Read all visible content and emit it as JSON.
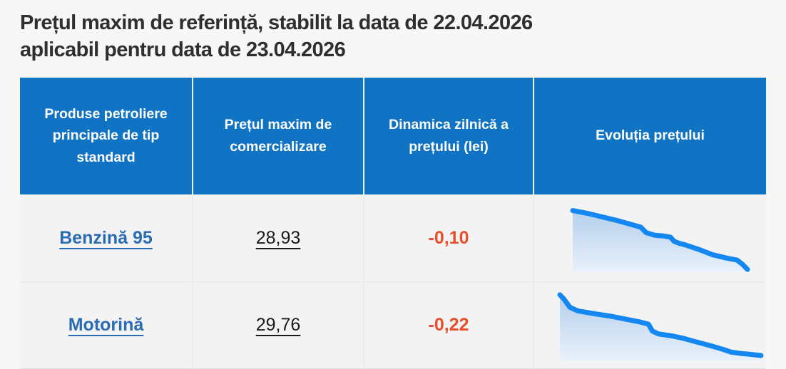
{
  "page": {
    "title_lines": [
      "Prețul maxim de referință, stabilit la data de 22.04.2026",
      "aplicabil pentru data de 23.04.2026"
    ]
  },
  "table": {
    "columns": [
      "Produse petroliere principale de tip standard",
      "Prețul maxim de comercializare",
      "Dinamica zilnică a prețului (lei)",
      "Evoluția prețului"
    ],
    "rows": [
      {
        "product": "Benzină 95",
        "max_price": "28,93",
        "daily_change": "-0,10"
      },
      {
        "product": "Motorină",
        "max_price": "29,76",
        "daily_change": "-0,22"
      }
    ]
  },
  "colors": {
    "header_bg": "#1173c3",
    "header_text": "#ffffff",
    "link_blue": "#2a6cb3",
    "negative_red": "#e94e2b",
    "spark_line": "#1487f0",
    "spark_fill_top": "#b4cfec",
    "spark_fill_bottom": "#e9f1fb",
    "row_bg": "#f3f3f4",
    "page_bg": "#f7f7f8",
    "title_text": "#2f2f2f"
  },
  "chart_data": [
    {
      "type": "area",
      "title": "Evoluția prețului — Benzină 95",
      "xlabel": "",
      "ylabel": "",
      "axes_labeled": false,
      "trend": "decreasing",
      "latest_price_lei": 28.93,
      "daily_change_lei": -0.1,
      "points_pct": [
        [
          0,
          8
        ],
        [
          8,
          12
        ],
        [
          16,
          17
        ],
        [
          24,
          22
        ],
        [
          31,
          27
        ],
        [
          39,
          33
        ],
        [
          42,
          41
        ],
        [
          47,
          45
        ],
        [
          52,
          46
        ],
        [
          56,
          48
        ],
        [
          58,
          54
        ],
        [
          61,
          57
        ],
        [
          64,
          59
        ],
        [
          72,
          66
        ],
        [
          80,
          74
        ],
        [
          88,
          79
        ],
        [
          94,
          82
        ],
        [
          97,
          88
        ],
        [
          100,
          96
        ]
      ]
    },
    {
      "type": "area",
      "title": "Evoluția prețului — Motorină",
      "xlabel": "",
      "ylabel": "",
      "axes_labeled": false,
      "trend": "decreasing",
      "latest_price_lei": 29.76,
      "daily_change_lei": -0.22,
      "points_pct": [
        [
          0,
          6
        ],
        [
          2,
          12
        ],
        [
          5,
          24
        ],
        [
          9,
          29
        ],
        [
          17,
          33
        ],
        [
          26,
          37
        ],
        [
          33,
          41
        ],
        [
          40,
          45
        ],
        [
          44,
          48
        ],
        [
          46,
          58
        ],
        [
          49,
          62
        ],
        [
          56,
          65
        ],
        [
          61,
          68
        ],
        [
          66,
          72
        ],
        [
          75,
          79
        ],
        [
          81,
          84
        ],
        [
          85,
          88
        ],
        [
          90,
          90
        ],
        [
          94,
          91
        ],
        [
          100,
          93
        ]
      ]
    }
  ]
}
